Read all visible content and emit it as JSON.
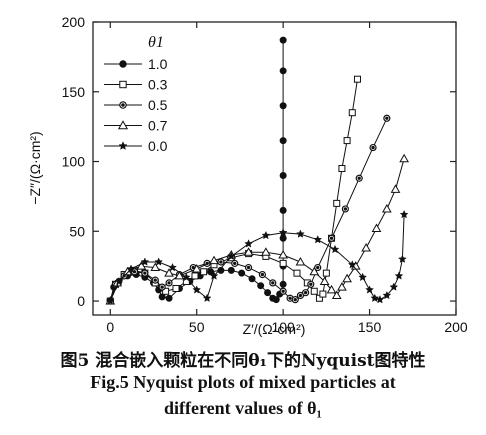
{
  "chart_data": {
    "type": "scatter",
    "xlabel": "Z′/(Ω·cm²)",
    "ylabel": "−Z″/(Ω·cm²)",
    "xlim": [
      -10,
      200
    ],
    "ylim": [
      -10,
      200
    ],
    "xticks": [
      0,
      50,
      100,
      150,
      200
    ],
    "yticks": [
      0,
      50,
      100,
      150,
      200
    ],
    "legend_title": "θ1",
    "legend_position": "top-left",
    "grid": false,
    "series": [
      {
        "name": "1.0",
        "marker": "filled-circle",
        "x": [
          0,
          2,
          5,
          10,
          15,
          20,
          25,
          28,
          30,
          34,
          40,
          46,
          52,
          58,
          64,
          70,
          76,
          82,
          87,
          91,
          94,
          96,
          98,
          100,
          100,
          100,
          100,
          100,
          100,
          100,
          100,
          100
        ],
        "y": [
          0,
          10,
          14,
          18,
          19,
          17,
          13,
          8,
          3,
          2,
          9,
          14,
          18,
          21,
          22,
          22,
          20,
          16,
          11,
          6,
          2,
          1,
          5,
          12,
          25,
          45,
          65,
          90,
          115,
          140,
          165,
          187
        ]
      },
      {
        "name": "0.3",
        "marker": "open-square",
        "x": [
          0,
          3,
          8,
          14,
          20,
          26,
          32,
          38,
          44,
          49,
          54,
          60,
          70,
          80,
          90,
          100,
          108,
          114,
          118,
          121,
          123,
          125,
          128,
          131,
          134,
          137,
          140,
          143
        ],
        "y": [
          0,
          12,
          19,
          22,
          20,
          13,
          7,
          9,
          14,
          18,
          21,
          26,
          31,
          34,
          32,
          27,
          20,
          13,
          7,
          2,
          5,
          20,
          45,
          70,
          95,
          115,
          135,
          159
        ]
      },
      {
        "name": "0.5",
        "marker": "circle-dot",
        "x": [
          0,
          3,
          8,
          14,
          20,
          26,
          30,
          34,
          40,
          48,
          56,
          64,
          72,
          80,
          88,
          94,
          100,
          104,
          107,
          110,
          113,
          116,
          120,
          128,
          136,
          144,
          152,
          160
        ],
        "y": [
          0,
          12,
          18,
          21,
          20,
          15,
          10,
          13,
          19,
          24,
          27,
          28,
          27,
          24,
          19,
          13,
          7,
          2,
          1,
          4,
          6,
          12,
          24,
          45,
          66,
          88,
          110,
          131
        ]
      },
      {
        "name": "0.7",
        "marker": "open-triangle",
        "x": [
          0,
          4,
          10,
          18,
          26,
          34,
          40,
          50,
          60,
          70,
          80,
          90,
          100,
          110,
          118,
          124,
          128,
          131,
          134,
          137,
          142,
          148,
          154,
          160,
          165,
          170
        ],
        "y": [
          0,
          13,
          21,
          25,
          24,
          20,
          18,
          23,
          29,
          33,
          35,
          35,
          33,
          28,
          21,
          14,
          8,
          4,
          10,
          16,
          25,
          38,
          52,
          66,
          80,
          102
        ]
      },
      {
        "name": "0.0",
        "marker": "star",
        "x": [
          0,
          5,
          12,
          20,
          28,
          36,
          44,
          50,
          56,
          60,
          70,
          80,
          90,
          100,
          110,
          120,
          130,
          140,
          146,
          150,
          153,
          156,
          160,
          164,
          167,
          169,
          170
        ],
        "y": [
          0,
          14,
          23,
          28,
          28,
          24,
          17,
          8,
          2,
          18,
          32,
          41,
          47,
          49,
          48,
          44,
          37,
          26,
          17,
          8,
          2,
          1,
          4,
          10,
          18,
          30,
          62
        ]
      }
    ]
  },
  "caption": {
    "cn": "图5   混合嵌入颗粒在不同θ₁下的Nyquist图特性",
    "en_line1": "Fig.5   Nyquist plots of mixed particles at",
    "en_line2": "different values of θ₁"
  }
}
